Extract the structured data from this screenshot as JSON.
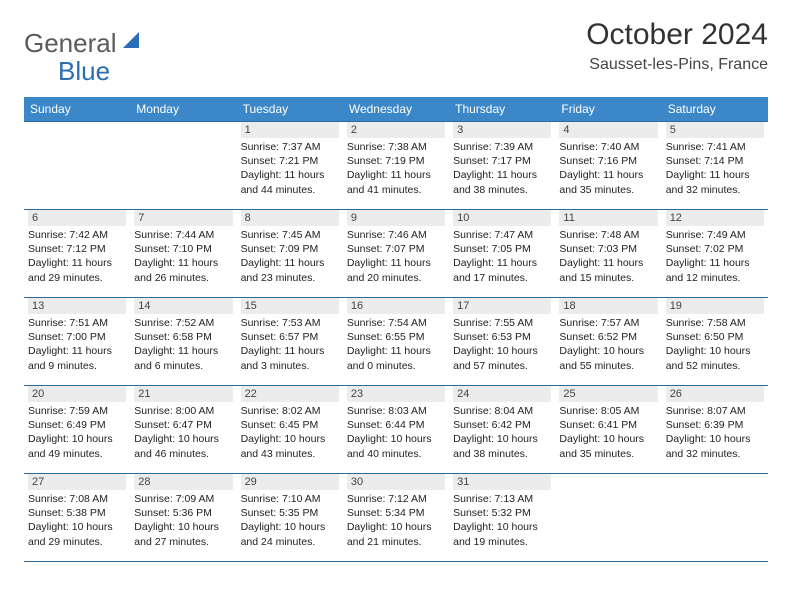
{
  "logo": {
    "text1": "General",
    "text2": "Blue"
  },
  "title": "October 2024",
  "location": "Sausset-les-Pins, France",
  "colors": {
    "header_bg": "#3b87c8",
    "header_text": "#ffffff",
    "rule": "#2d6aa3",
    "daynum_bg": "#ececec",
    "logo_gray": "#5b5b5b",
    "logo_blue": "#2a6fb5",
    "body_text": "#222222"
  },
  "day_names": [
    "Sunday",
    "Monday",
    "Tuesday",
    "Wednesday",
    "Thursday",
    "Friday",
    "Saturday"
  ],
  "weeks": [
    [
      {
        "n": "",
        "sr": "",
        "ss": "",
        "dl": ""
      },
      {
        "n": "",
        "sr": "",
        "ss": "",
        "dl": ""
      },
      {
        "n": "1",
        "sr": "Sunrise: 7:37 AM",
        "ss": "Sunset: 7:21 PM",
        "dl": "Daylight: 11 hours and 44 minutes."
      },
      {
        "n": "2",
        "sr": "Sunrise: 7:38 AM",
        "ss": "Sunset: 7:19 PM",
        "dl": "Daylight: 11 hours and 41 minutes."
      },
      {
        "n": "3",
        "sr": "Sunrise: 7:39 AM",
        "ss": "Sunset: 7:17 PM",
        "dl": "Daylight: 11 hours and 38 minutes."
      },
      {
        "n": "4",
        "sr": "Sunrise: 7:40 AM",
        "ss": "Sunset: 7:16 PM",
        "dl": "Daylight: 11 hours and 35 minutes."
      },
      {
        "n": "5",
        "sr": "Sunrise: 7:41 AM",
        "ss": "Sunset: 7:14 PM",
        "dl": "Daylight: 11 hours and 32 minutes."
      }
    ],
    [
      {
        "n": "6",
        "sr": "Sunrise: 7:42 AM",
        "ss": "Sunset: 7:12 PM",
        "dl": "Daylight: 11 hours and 29 minutes."
      },
      {
        "n": "7",
        "sr": "Sunrise: 7:44 AM",
        "ss": "Sunset: 7:10 PM",
        "dl": "Daylight: 11 hours and 26 minutes."
      },
      {
        "n": "8",
        "sr": "Sunrise: 7:45 AM",
        "ss": "Sunset: 7:09 PM",
        "dl": "Daylight: 11 hours and 23 minutes."
      },
      {
        "n": "9",
        "sr": "Sunrise: 7:46 AM",
        "ss": "Sunset: 7:07 PM",
        "dl": "Daylight: 11 hours and 20 minutes."
      },
      {
        "n": "10",
        "sr": "Sunrise: 7:47 AM",
        "ss": "Sunset: 7:05 PM",
        "dl": "Daylight: 11 hours and 17 minutes."
      },
      {
        "n": "11",
        "sr": "Sunrise: 7:48 AM",
        "ss": "Sunset: 7:03 PM",
        "dl": "Daylight: 11 hours and 15 minutes."
      },
      {
        "n": "12",
        "sr": "Sunrise: 7:49 AM",
        "ss": "Sunset: 7:02 PM",
        "dl": "Daylight: 11 hours and 12 minutes."
      }
    ],
    [
      {
        "n": "13",
        "sr": "Sunrise: 7:51 AM",
        "ss": "Sunset: 7:00 PM",
        "dl": "Daylight: 11 hours and 9 minutes."
      },
      {
        "n": "14",
        "sr": "Sunrise: 7:52 AM",
        "ss": "Sunset: 6:58 PM",
        "dl": "Daylight: 11 hours and 6 minutes."
      },
      {
        "n": "15",
        "sr": "Sunrise: 7:53 AM",
        "ss": "Sunset: 6:57 PM",
        "dl": "Daylight: 11 hours and 3 minutes."
      },
      {
        "n": "16",
        "sr": "Sunrise: 7:54 AM",
        "ss": "Sunset: 6:55 PM",
        "dl": "Daylight: 11 hours and 0 minutes."
      },
      {
        "n": "17",
        "sr": "Sunrise: 7:55 AM",
        "ss": "Sunset: 6:53 PM",
        "dl": "Daylight: 10 hours and 57 minutes."
      },
      {
        "n": "18",
        "sr": "Sunrise: 7:57 AM",
        "ss": "Sunset: 6:52 PM",
        "dl": "Daylight: 10 hours and 55 minutes."
      },
      {
        "n": "19",
        "sr": "Sunrise: 7:58 AM",
        "ss": "Sunset: 6:50 PM",
        "dl": "Daylight: 10 hours and 52 minutes."
      }
    ],
    [
      {
        "n": "20",
        "sr": "Sunrise: 7:59 AM",
        "ss": "Sunset: 6:49 PM",
        "dl": "Daylight: 10 hours and 49 minutes."
      },
      {
        "n": "21",
        "sr": "Sunrise: 8:00 AM",
        "ss": "Sunset: 6:47 PM",
        "dl": "Daylight: 10 hours and 46 minutes."
      },
      {
        "n": "22",
        "sr": "Sunrise: 8:02 AM",
        "ss": "Sunset: 6:45 PM",
        "dl": "Daylight: 10 hours and 43 minutes."
      },
      {
        "n": "23",
        "sr": "Sunrise: 8:03 AM",
        "ss": "Sunset: 6:44 PM",
        "dl": "Daylight: 10 hours and 40 minutes."
      },
      {
        "n": "24",
        "sr": "Sunrise: 8:04 AM",
        "ss": "Sunset: 6:42 PM",
        "dl": "Daylight: 10 hours and 38 minutes."
      },
      {
        "n": "25",
        "sr": "Sunrise: 8:05 AM",
        "ss": "Sunset: 6:41 PM",
        "dl": "Daylight: 10 hours and 35 minutes."
      },
      {
        "n": "26",
        "sr": "Sunrise: 8:07 AM",
        "ss": "Sunset: 6:39 PM",
        "dl": "Daylight: 10 hours and 32 minutes."
      }
    ],
    [
      {
        "n": "27",
        "sr": "Sunrise: 7:08 AM",
        "ss": "Sunset: 5:38 PM",
        "dl": "Daylight: 10 hours and 29 minutes."
      },
      {
        "n": "28",
        "sr": "Sunrise: 7:09 AM",
        "ss": "Sunset: 5:36 PM",
        "dl": "Daylight: 10 hours and 27 minutes."
      },
      {
        "n": "29",
        "sr": "Sunrise: 7:10 AM",
        "ss": "Sunset: 5:35 PM",
        "dl": "Daylight: 10 hours and 24 minutes."
      },
      {
        "n": "30",
        "sr": "Sunrise: 7:12 AM",
        "ss": "Sunset: 5:34 PM",
        "dl": "Daylight: 10 hours and 21 minutes."
      },
      {
        "n": "31",
        "sr": "Sunrise: 7:13 AM",
        "ss": "Sunset: 5:32 PM",
        "dl": "Daylight: 10 hours and 19 minutes."
      },
      {
        "n": "",
        "sr": "",
        "ss": "",
        "dl": ""
      },
      {
        "n": "",
        "sr": "",
        "ss": "",
        "dl": ""
      }
    ]
  ]
}
